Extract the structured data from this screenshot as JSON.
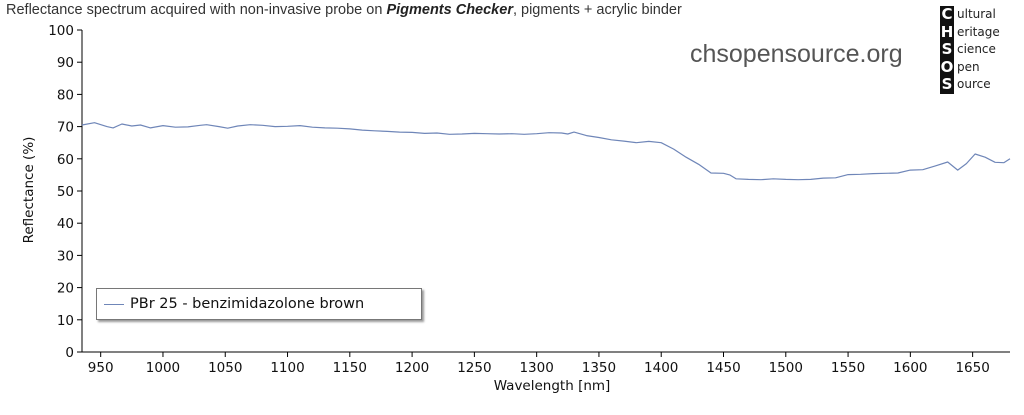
{
  "title_prefix": "Reflectance spectrum acquired with non-invasive probe on ",
  "title_emphasis": "Pigments Checker",
  "title_suffix": ", pigments + acrylic binder",
  "watermark": "chsopensource.org",
  "logo": {
    "rows": [
      {
        "letter": "C",
        "rest": "ultural"
      },
      {
        "letter": "H",
        "rest": "eritage"
      },
      {
        "letter": "S",
        "rest": "cience"
      },
      {
        "letter": "O",
        "rest": "pen"
      },
      {
        "letter": "S",
        "rest": "ource"
      }
    ]
  },
  "colors": {
    "series": "#6f86b8",
    "axis": "#000000",
    "grid": "#dddddd"
  },
  "chart_data": {
    "type": "line",
    "xlabel": "Wavelength [nm]",
    "ylabel": "Reflectance (%)",
    "xlim": [
      935,
      1680
    ],
    "ylim": [
      0,
      100
    ],
    "xticks": [
      950,
      1000,
      1050,
      1100,
      1150,
      1200,
      1250,
      1300,
      1350,
      1400,
      1450,
      1500,
      1550,
      1600,
      1650
    ],
    "yticks": [
      0,
      10,
      20,
      30,
      40,
      50,
      60,
      70,
      80,
      90,
      100
    ],
    "legend_position": "bottom-left",
    "series": [
      {
        "name": "PBr 25 - benzimidazolone brown",
        "x": [
          935,
          945,
          955,
          960,
          967,
          975,
          982,
          990,
          1000,
          1010,
          1020,
          1030,
          1035,
          1045,
          1052,
          1060,
          1070,
          1080,
          1090,
          1100,
          1110,
          1120,
          1130,
          1140,
          1150,
          1160,
          1170,
          1180,
          1190,
          1200,
          1210,
          1220,
          1230,
          1240,
          1250,
          1260,
          1270,
          1280,
          1290,
          1300,
          1310,
          1320,
          1325,
          1330,
          1340,
          1350,
          1360,
          1370,
          1380,
          1390,
          1400,
          1410,
          1420,
          1430,
          1440,
          1450,
          1455,
          1460,
          1470,
          1480,
          1490,
          1500,
          1510,
          1520,
          1530,
          1540,
          1550,
          1560,
          1570,
          1580,
          1590,
          1600,
          1610,
          1620,
          1630,
          1638,
          1645,
          1652,
          1660,
          1668,
          1675,
          1680
        ],
        "y": [
          70.5,
          71.2,
          70.0,
          69.6,
          70.8,
          70.2,
          70.5,
          69.6,
          70.3,
          69.8,
          69.9,
          70.4,
          70.6,
          70.0,
          69.5,
          70.2,
          70.6,
          70.4,
          70.0,
          70.1,
          70.3,
          69.8,
          69.6,
          69.5,
          69.3,
          68.9,
          68.7,
          68.5,
          68.3,
          68.2,
          67.9,
          68.0,
          67.6,
          67.7,
          67.9,
          67.8,
          67.7,
          67.8,
          67.6,
          67.8,
          68.1,
          68.0,
          67.7,
          68.3,
          67.2,
          66.6,
          65.9,
          65.5,
          65.0,
          65.4,
          65.0,
          63.0,
          60.5,
          58.3,
          55.6,
          55.5,
          55.0,
          53.8,
          53.6,
          53.5,
          53.8,
          53.6,
          53.5,
          53.6,
          54.0,
          54.1,
          55.1,
          55.2,
          55.4,
          55.5,
          55.6,
          56.5,
          56.6,
          57.8,
          59.0,
          56.5,
          58.5,
          61.5,
          60.5,
          58.9,
          58.8,
          60.0
        ]
      }
    ]
  }
}
